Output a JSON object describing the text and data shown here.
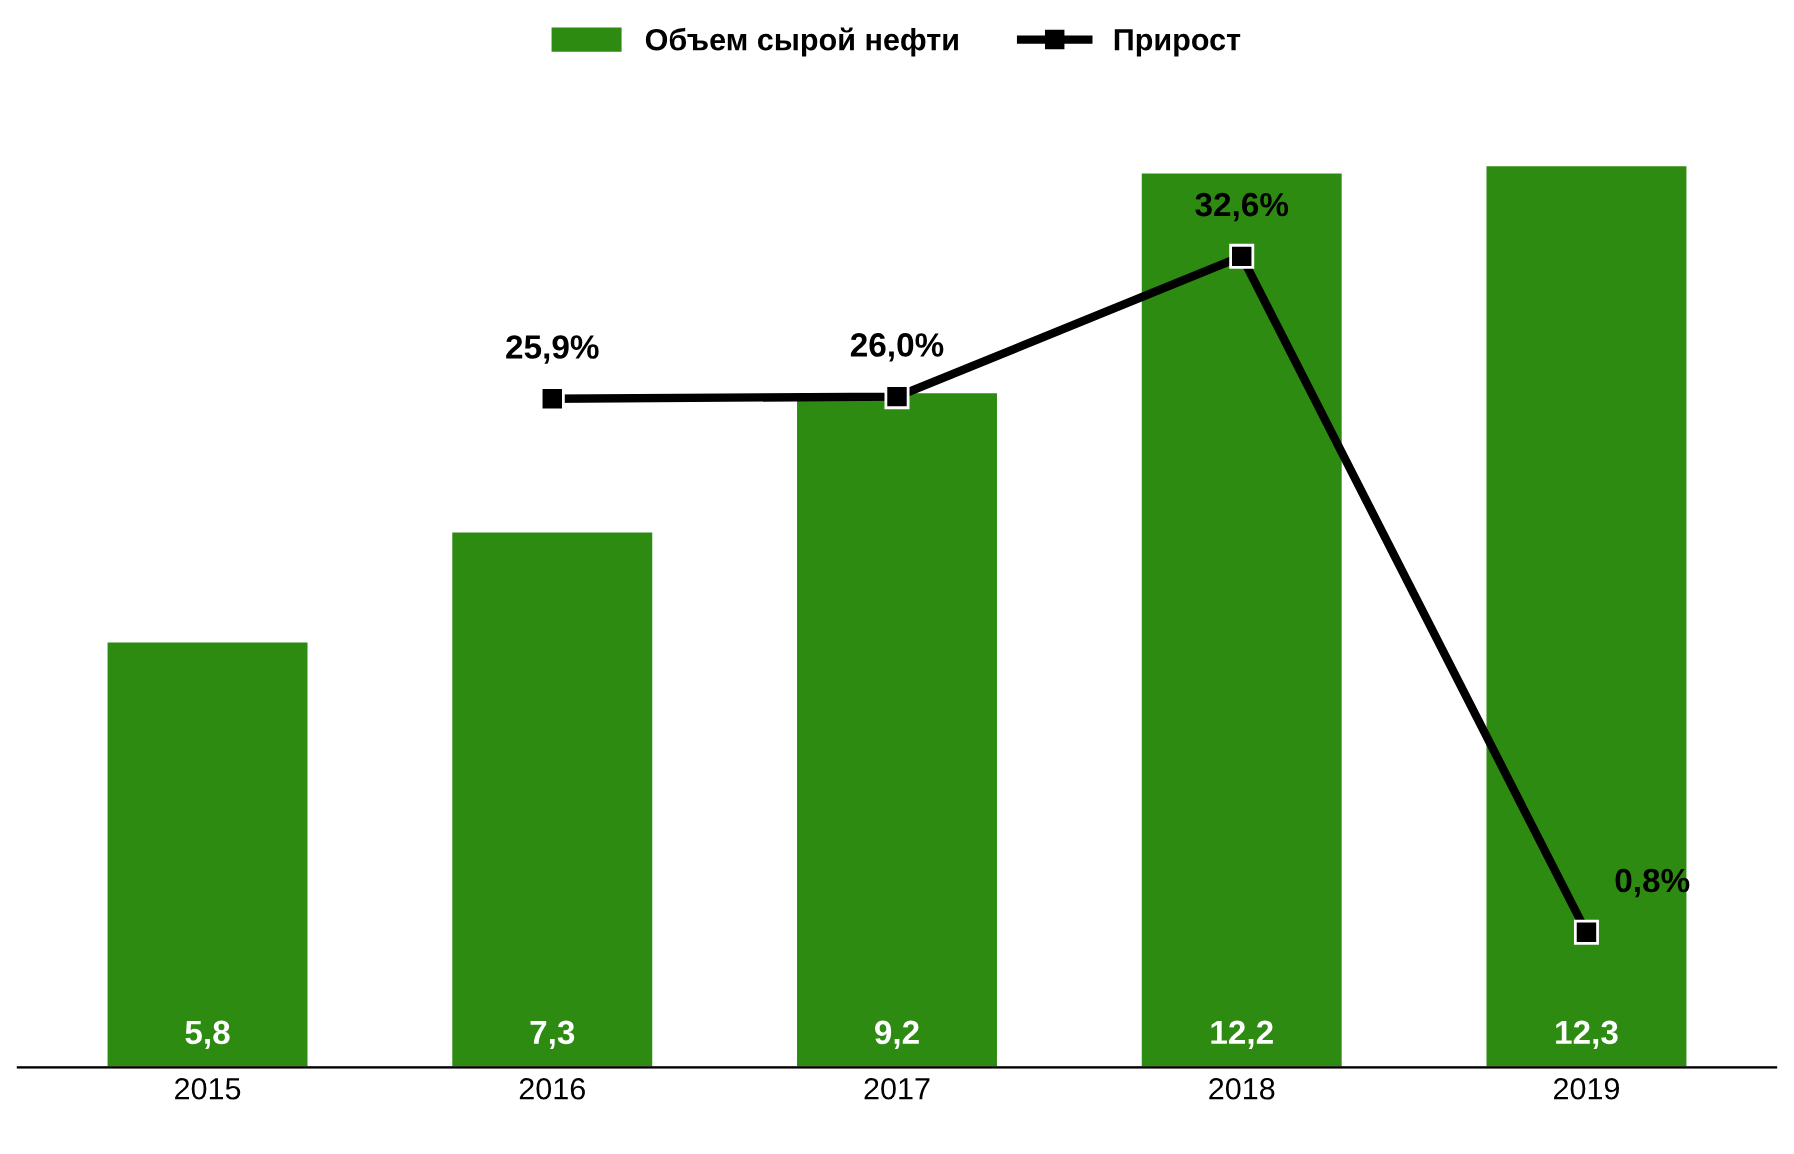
{
  "chart_data": {
    "type": "bar",
    "categories": [
      "2015",
      "2016",
      "2017",
      "2018",
      "2019"
    ],
    "series": [
      {
        "name": "Объем сырой нефти",
        "color": "#2e8b12",
        "value_labels": [
          "5,8",
          "7,3",
          "9,2",
          "12,2",
          "12,3"
        ],
        "values": [
          5.8,
          7.3,
          9.2,
          12.2,
          12.3
        ]
      },
      {
        "name": "Прирост",
        "type": "line",
        "axis": "y2",
        "color": "#000000",
        "marker": "square",
        "value_labels": [
          null,
          "25,9%",
          "26,0%",
          "32,6%",
          "0,8%"
        ],
        "values": [
          null,
          25.9,
          26.0,
          32.6,
          0.8
        ]
      }
    ],
    "legend": "top",
    "tick_labels": "x"
  }
}
